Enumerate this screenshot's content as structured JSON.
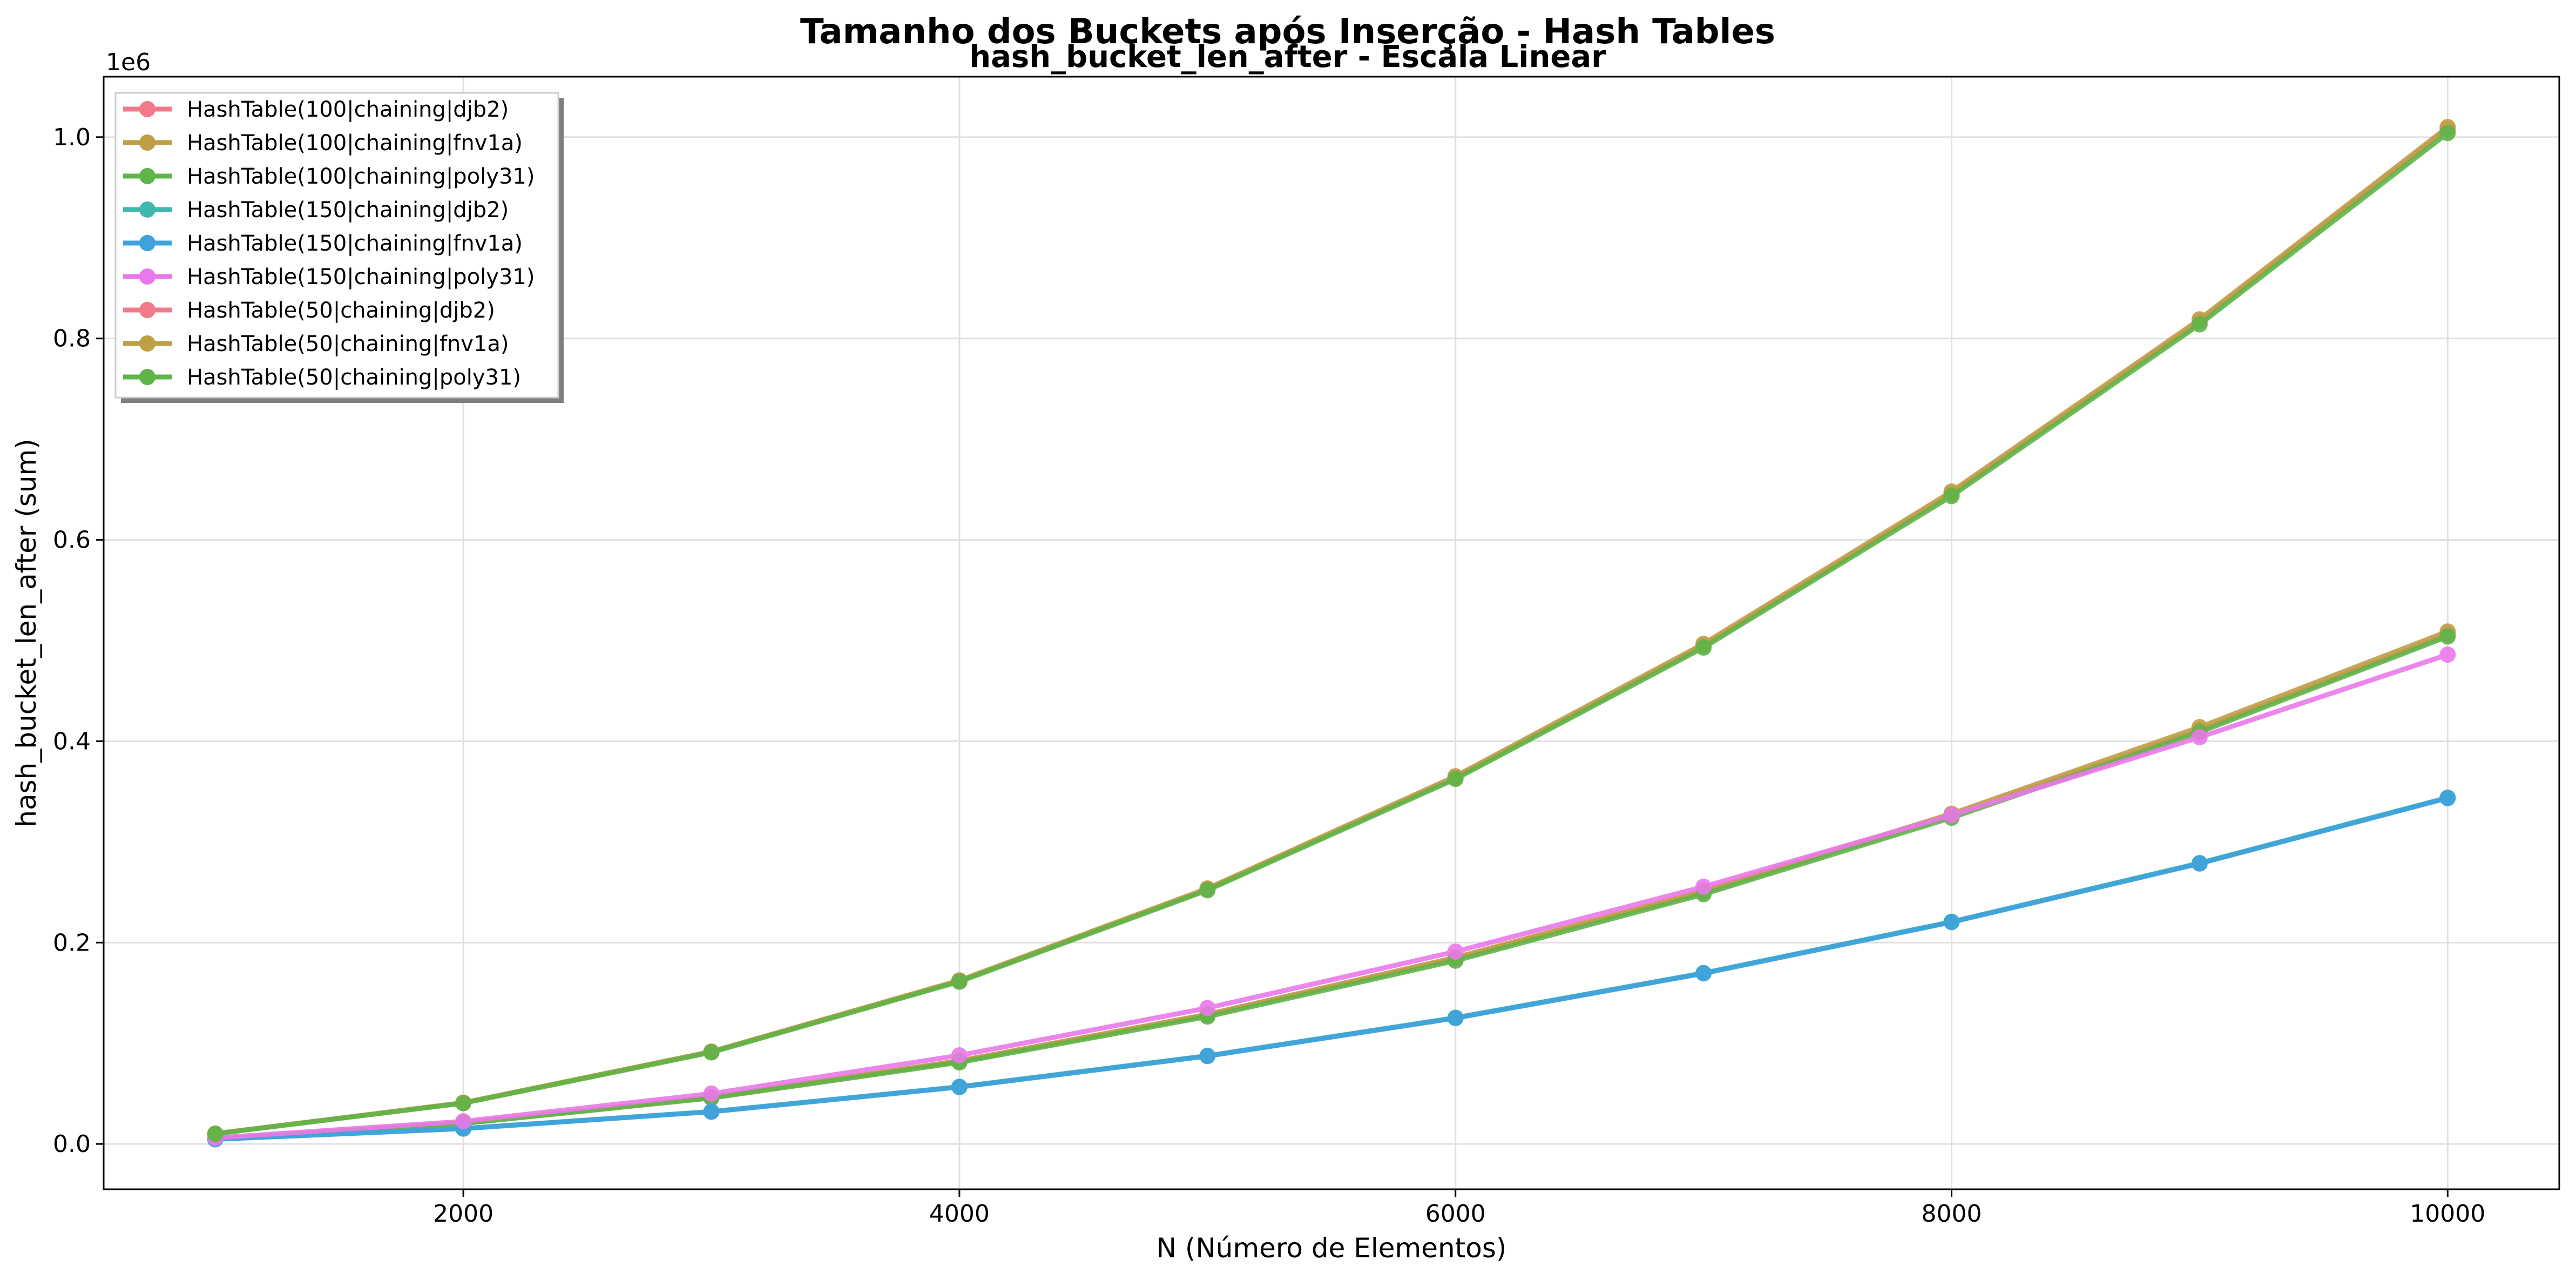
{
  "chart_data": {
    "type": "line",
    "title": "Tamanho dos Buckets após Inserção - Hash Tables",
    "subtitle": "hash_bucket_len_after - Escala Linear",
    "xlabel": "N (Número de Elementos)",
    "ylabel": "hash_bucket_len_after (sum)",
    "y_offset_label": "1e6",
    "xlim": [
      550,
      10450
    ],
    "ylim": [
      -0.045,
      1.06
    ],
    "x_ticks": [
      2000,
      4000,
      6000,
      8000,
      10000
    ],
    "x_tick_labels": [
      "2000",
      "4000",
      "6000",
      "8000",
      "10000"
    ],
    "y_ticks": [
      0.0,
      0.2,
      0.4,
      0.6,
      0.8,
      1.0
    ],
    "y_tick_labels": [
      "0.0",
      "0.2",
      "0.4",
      "0.6",
      "0.8",
      "1.0"
    ],
    "grid": true,
    "legend_position": "upper-left",
    "x": [
      1000,
      2000,
      3000,
      4000,
      5000,
      6000,
      7000,
      8000,
      9000,
      10000
    ],
    "series": [
      {
        "name": "HashTable(100|chaining|djb2)",
        "color": "#f07a8a",
        "values": [
          0.0051,
          0.0207,
          0.0463,
          0.0821,
          0.1281,
          0.1841,
          0.2501,
          0.3261,
          0.4111,
          0.5061
        ]
      },
      {
        "name": "HashTable(100|chaining|fnv1a)",
        "color": "#bf9f45",
        "values": [
          0.0052,
          0.0209,
          0.0466,
          0.0826,
          0.1288,
          0.1852,
          0.2515,
          0.328,
          0.414,
          0.509
        ]
      },
      {
        "name": "HashTable(100|chaining|poly31)",
        "color": "#5eb548",
        "values": [
          0.005,
          0.0203,
          0.0456,
          0.081,
          0.1265,
          0.182,
          0.248,
          0.324,
          0.409,
          0.504
        ]
      },
      {
        "name": "HashTable(150|chaining|djb2)",
        "color": "#3fb8ae",
        "values": [
          0.0047,
          0.0154,
          0.0322,
          0.0568,
          0.0876,
          0.1254,
          0.1698,
          0.2207,
          0.279,
          0.344
        ]
      },
      {
        "name": "HashTable(150|chaining|fnv1a)",
        "color": "#3fa2de",
        "values": [
          0.0046,
          0.0152,
          0.032,
          0.0565,
          0.0873,
          0.125,
          0.1694,
          0.2203,
          0.2785,
          0.3435
        ]
      },
      {
        "name": "HashTable(150|chaining|poly31)",
        "color": "#ea78ea",
        "values": [
          0.006,
          0.0225,
          0.05,
          0.088,
          0.135,
          0.191,
          0.2555,
          0.3265,
          0.404,
          0.486
        ]
      },
      {
        "name": "HashTable(50|chaining|djb2)",
        "color": "#f07a8a",
        "values": [
          0.0102,
          0.0408,
          0.0915,
          0.162,
          0.253,
          0.364,
          0.495,
          0.646,
          0.817,
          1.008
        ]
      },
      {
        "name": "HashTable(50|chaining|fnv1a)",
        "color": "#bf9f45",
        "values": [
          0.0103,
          0.041,
          0.0918,
          0.1625,
          0.2538,
          0.3652,
          0.4967,
          0.648,
          0.819,
          1.01
        ]
      },
      {
        "name": "HashTable(50|chaining|poly31)",
        "color": "#5eb548",
        "values": [
          0.0101,
          0.0405,
          0.091,
          0.1612,
          0.252,
          0.3625,
          0.493,
          0.6435,
          0.814,
          1.004
        ]
      }
    ]
  }
}
